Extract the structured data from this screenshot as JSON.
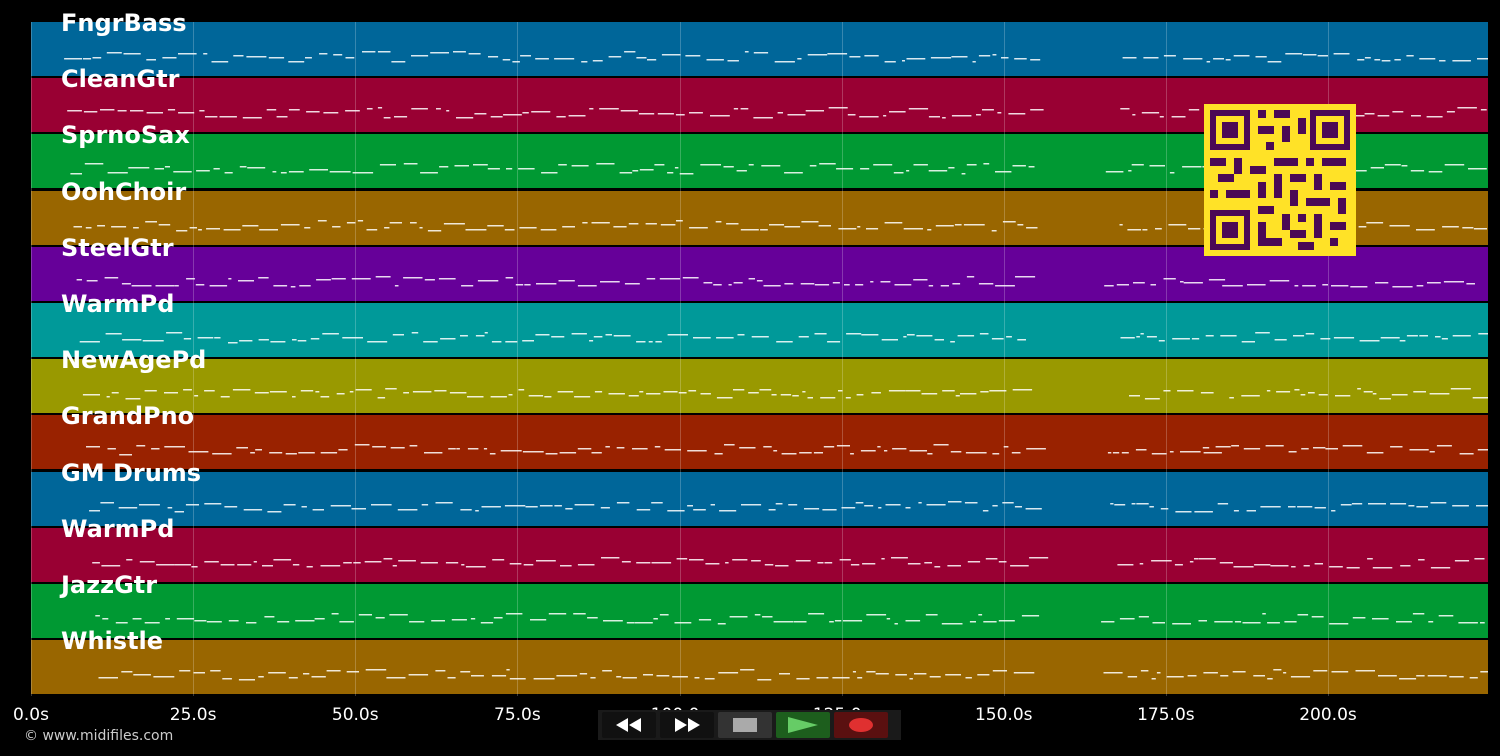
{
  "tracks": [
    {
      "name": "FngrBass",
      "color": "#006699"
    },
    {
      "name": "CleanGtr",
      "color": "#990033"
    },
    {
      "name": "SprnoSax",
      "color": "#009933"
    },
    {
      "name": "OohChoir",
      "color": "#996600"
    },
    {
      "name": "SteelGtr",
      "color": "#660099"
    },
    {
      "name": "WarmPd",
      "color": "#009999"
    },
    {
      "name": "NewAgePd",
      "color": "#999900"
    },
    {
      "name": "GrandPno",
      "color": "#992200"
    },
    {
      "name": "GM Drums",
      "color": "#006699"
    },
    {
      "name": "WarmPd",
      "color": "#990033"
    },
    {
      "name": "JazzGtr",
      "color": "#009933"
    },
    {
      "name": "Whistle",
      "color": "#996600"
    }
  ],
  "axis": {
    "ticks": [
      "0.0s",
      "25.0s",
      "50.0s",
      "75.0s",
      "100.0s",
      "125.0s",
      "150.0s",
      "175.0s",
      "200.0s"
    ],
    "tick_values": [
      0,
      25,
      50,
      75,
      100,
      125,
      150,
      175,
      200
    ],
    "max_seconds": 225
  },
  "copyright": "© www.midifiles.com",
  "transport": {
    "rewind": "rewind-icon",
    "fast_forward": "fast-forward-icon",
    "stop": "stop-icon",
    "play": "play-icon",
    "record": "record-icon"
  },
  "colors": {
    "qr_fg": "#4b0a55",
    "qr_bg": "#ffe227"
  }
}
